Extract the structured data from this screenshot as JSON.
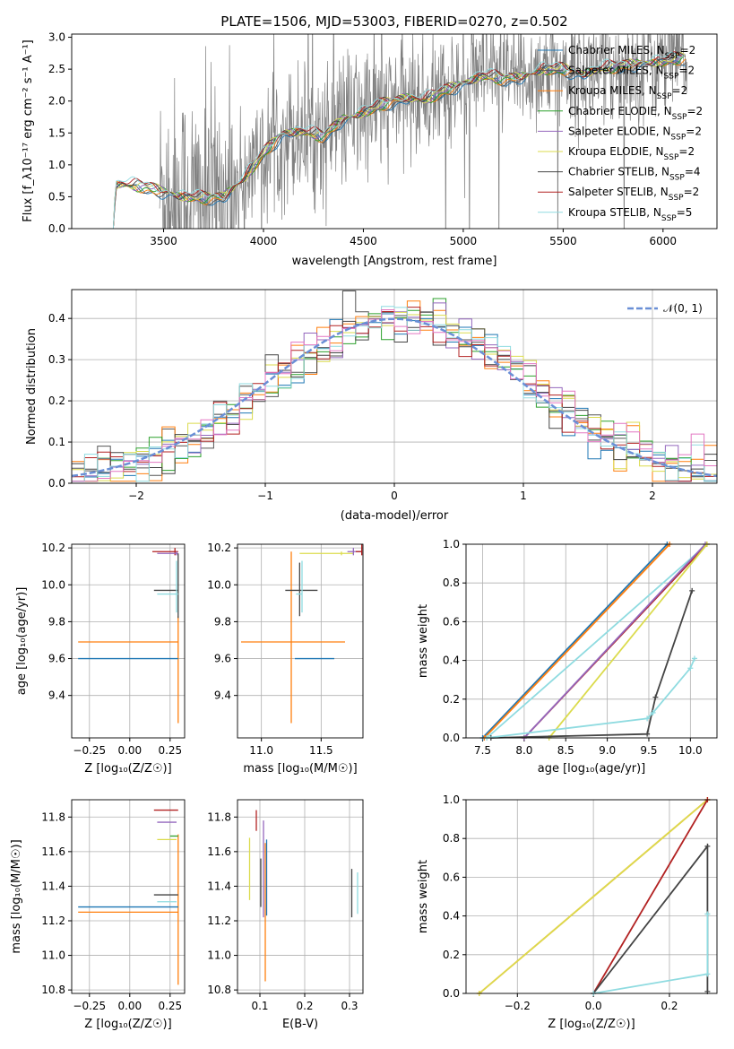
{
  "title": "PLATE=1506, MJD=53003, FIBERID=0270, z=0.502",
  "models": [
    {
      "name": "Chabrier MILES, N_SSP=2",
      "color": "#1f77b4"
    },
    {
      "name": "Salpeter MILES, N_SSP=2",
      "color": "#555555"
    },
    {
      "name": "Kroupa MILES, N_SSP=2",
      "color": "#ff7f0e"
    },
    {
      "name": "Chabrier ELODIE, N_SSP=2",
      "color": "#2ca02c"
    },
    {
      "name": "Salpeter ELODIE, N_SSP=2",
      "color": "#9467bd"
    },
    {
      "name": "Kroupa ELODIE, N_SSP=2",
      "color": "#dbdb4d"
    },
    {
      "name": "Chabrier STELIB, N_SSP=4",
      "color": "#444444"
    },
    {
      "name": "Salpeter STELIB, N_SSP=2",
      "color": "#b22222"
    },
    {
      "name": "Kroupa STELIB, N_SSP=5",
      "color": "#8fdbe0"
    }
  ],
  "chart_data": [
    {
      "type": "line",
      "panel": "spectrum",
      "xlabel": "wavelength [Angstrom, rest frame]",
      "ylabel": "Flux [f_λ10⁻¹⁷ erg cm⁻² s⁻¹ A⁻¹]",
      "xlim": [
        3040,
        6270
      ],
      "ylim": [
        0,
        3.05
      ],
      "xticks": [
        3500,
        4000,
        4500,
        5000,
        5500,
        6000
      ],
      "yticks": [
        0.0,
        0.5,
        1.0,
        1.5,
        2.0,
        2.5,
        3.0
      ],
      "model_x": [
        3200,
        3250,
        3260,
        3300,
        3400,
        3500,
        3600,
        3700,
        3800,
        3900,
        4000,
        4100,
        4200,
        4300,
        4400,
        4500,
        4600,
        4700,
        4800,
        4900,
        5000,
        5100,
        5200,
        5300,
        5400,
        5500,
        5600,
        5700,
        5800,
        5900,
        6000,
        6100
      ],
      "model_y": [
        0.0,
        0.0,
        0.68,
        0.7,
        0.66,
        0.58,
        0.5,
        0.48,
        0.5,
        0.78,
        1.18,
        1.5,
        1.52,
        1.45,
        1.72,
        1.82,
        1.95,
        2.05,
        2.02,
        2.15,
        2.28,
        2.4,
        2.35,
        2.38,
        2.5,
        2.5,
        2.42,
        2.52,
        2.55,
        2.6,
        2.62,
        2.68
      ],
      "data_color": "#808080"
    },
    {
      "type": "line",
      "panel": "residual-histogram",
      "xlabel": "(data-model)/error",
      "ylabel": "Normed distribution",
      "xlim": [
        -2.5,
        2.5
      ],
      "ylim": [
        0,
        0.47
      ],
      "xticks": [
        -2,
        -1,
        0,
        1,
        2
      ],
      "yticks": [
        0.0,
        0.1,
        0.2,
        0.3,
        0.4
      ],
      "legend": "𝒩(0, 1)",
      "reference_curve": "normal(0,1)",
      "bin_width": 0.1
    },
    {
      "type": "scatter",
      "panel": "age-vs-Z",
      "xlabel": "Z [log₁₀(Z/Z☉)]",
      "ylabel": "age  [log₁₀(age/yr)]",
      "xlim": [
        -0.36,
        0.34
      ],
      "ylim": [
        9.17,
        10.22
      ],
      "xticks": [
        -0.25,
        0.0,
        0.25
      ],
      "yticks": [
        9.4,
        9.6,
        9.8,
        10.0,
        10.2
      ],
      "points": [
        {
          "x": 0.3,
          "y": 9.69,
          "xerr": [
            0.62,
            0.0
          ],
          "yerr": [
            0.44,
            0.14
          ],
          "m": 2
        },
        {
          "x": 0.3,
          "y": 9.6,
          "xerr": [
            0.62,
            0.0
          ],
          "yerr": [
            0,
            0
          ],
          "m": 0
        },
        {
          "x": 0.28,
          "y": 10.18,
          "xerr": [
            0.14,
            0.02
          ],
          "yerr": [
            0.02,
            0.02
          ],
          "m": 7
        },
        {
          "x": 0.29,
          "y": 10.17,
          "xerr": [
            0.12,
            0.01
          ],
          "yerr": [
            0.01,
            0.01
          ],
          "m": 4
        },
        {
          "x": 0.3,
          "y": 9.97,
          "xerr": [
            0.15,
            0.0
          ],
          "yerr": [
            0.15,
            0.2
          ],
          "m": 6
        },
        {
          "x": 0.29,
          "y": 9.95,
          "xerr": [
            0.12,
            0.01
          ],
          "yerr": [
            0.1,
            0.18
          ],
          "m": 8
        }
      ]
    },
    {
      "type": "scatter",
      "panel": "age-vs-mass",
      "xlabel": "mass [log₁₀(M/M☉)]",
      "ylabel": "",
      "xlim": [
        10.8,
        11.85
      ],
      "ylim": [
        9.17,
        10.22
      ],
      "xticks": [
        11.0,
        11.5
      ],
      "yticks": [
        9.4,
        9.6,
        9.8,
        10.0,
        10.2
      ],
      "points": [
        {
          "x": 11.25,
          "y": 9.69,
          "xerr": [
            0.42,
            0.45
          ],
          "yerr": [
            0.44,
            0.49
          ],
          "m": 2
        },
        {
          "x": 11.28,
          "y": 9.6,
          "xerr": [
            0.0,
            0.33
          ],
          "yerr": [
            0.0,
            0.0
          ],
          "m": 0
        },
        {
          "x": 11.32,
          "y": 9.97,
          "xerr": [
            0.12,
            0.15
          ],
          "yerr": [
            0.14,
            0.15
          ],
          "m": 6
        },
        {
          "x": 11.34,
          "y": 9.95,
          "xerr": [
            0.05,
            0.0
          ],
          "yerr": [
            0.1,
            0.18
          ],
          "m": 8
        },
        {
          "x": 11.67,
          "y": 10.17,
          "xerr": [
            0.35,
            0.1
          ],
          "yerr": [
            0.01,
            0.01
          ],
          "m": 5
        },
        {
          "x": 11.77,
          "y": 10.18,
          "xerr": [
            0.05,
            0.07
          ],
          "yerr": [
            0.02,
            0.02
          ],
          "m": 4
        },
        {
          "x": 11.84,
          "y": 10.18,
          "xerr": [
            0.05,
            0.0
          ],
          "yerr": [
            0.02,
            0.05
          ],
          "m": 7
        }
      ]
    },
    {
      "type": "line",
      "panel": "cumulative-mass-weight-vs-age",
      "xlabel": "age  [log₁₀(age/yr)]",
      "ylabel": "mass weight",
      "xlim": [
        7.3,
        10.32
      ],
      "ylim": [
        0,
        1.0
      ],
      "xticks": [
        7.5,
        8.0,
        8.5,
        9.0,
        9.5,
        10.0
      ],
      "yticks": [
        0.0,
        0.2,
        0.4,
        0.6,
        0.8,
        1.0
      ],
      "series": [
        {
          "m": 0,
          "x": [
            7.5,
            9.72
          ],
          "y": [
            0.0,
            1.0
          ]
        },
        {
          "m": 2,
          "x": [
            7.52,
            9.75
          ],
          "y": [
            0.0,
            1.0
          ]
        },
        {
          "m": 8,
          "x": [
            7.55,
            10.2
          ],
          "y": [
            0.0,
            1.0
          ]
        },
        {
          "m": 7,
          "x": [
            8.0,
            10.2
          ],
          "y": [
            0.0,
            1.0
          ]
        },
        {
          "m": 4,
          "x": [
            8.0,
            10.18
          ],
          "y": [
            0.0,
            1.0
          ]
        },
        {
          "m": 5,
          "x": [
            8.3,
            10.2
          ],
          "y": [
            0.0,
            1.0
          ]
        },
        {
          "m": 6,
          "x": [
            7.6,
            9.48,
            9.58,
            10.02
          ],
          "y": [
            0.0,
            0.02,
            0.21,
            0.76
          ]
        },
        {
          "m": 8,
          "x": [
            7.55,
            9.48,
            9.55,
            10.0,
            10.05
          ],
          "y": [
            0.0,
            0.1,
            0.13,
            0.36,
            0.41
          ]
        }
      ]
    },
    {
      "type": "scatter",
      "panel": "mass-vs-Z",
      "xlabel": "Z [log₁₀(Z/Z☉)]",
      "ylabel": "mass [log₁₀(M/M☉)]",
      "xlim": [
        -0.36,
        0.34
      ],
      "ylim": [
        10.78,
        11.9
      ],
      "xticks": [
        -0.25,
        0.0,
        0.25
      ],
      "yticks": [
        10.8,
        11.0,
        11.2,
        11.4,
        11.6,
        11.8
      ],
      "points": [
        {
          "x": 0.3,
          "y": 11.25,
          "xerr": [
            0.62,
            0.0
          ],
          "yerr": [
            0.42,
            0.45
          ],
          "m": 2
        },
        {
          "x": 0.3,
          "y": 11.28,
          "xerr": [
            0.62,
            0.0
          ],
          "yerr": [
            0,
            0
          ],
          "m": 0
        },
        {
          "x": 0.3,
          "y": 11.35,
          "xerr": [
            0.15,
            0.0
          ],
          "yerr": [
            0.0,
            0.0
          ],
          "m": 6
        },
        {
          "x": 0.29,
          "y": 11.31,
          "xerr": [
            0.12,
            0.0
          ],
          "yerr": [
            0.0,
            0.0
          ],
          "m": 8
        },
        {
          "x": 0.3,
          "y": 11.84,
          "xerr": [
            0.15,
            0.0
          ],
          "yerr": [
            0.0,
            0.0
          ],
          "m": 7
        },
        {
          "x": 0.29,
          "y": 11.77,
          "xerr": [
            0.12,
            0.0
          ],
          "yerr": [
            0.0,
            0.0
          ],
          "m": 4
        },
        {
          "x": 0.29,
          "y": 11.67,
          "xerr": [
            0.12,
            0.0
          ],
          "yerr": [
            0.0,
            0.0
          ],
          "m": 5
        },
        {
          "x": 0.3,
          "y": 11.69,
          "xerr": [
            0.05,
            0.0
          ],
          "yerr": [
            0.0,
            0.0
          ],
          "m": 3
        }
      ]
    },
    {
      "type": "scatter",
      "panel": "mass-vs-EBV",
      "xlabel": "E(B-V)",
      "ylabel": "",
      "xlim": [
        0.05,
        0.33
      ],
      "ylim": [
        10.78,
        11.9
      ],
      "xticks": [
        0.1,
        0.2,
        0.3
      ],
      "yticks": [
        10.8,
        11.0,
        11.2,
        11.4,
        11.6,
        11.8
      ],
      "points": [
        {
          "x": 0.077,
          "y": 11.5,
          "xerr": [
            0,
            0
          ],
          "yerr": [
            0.18,
            0.18
          ],
          "m": 5
        },
        {
          "x": 0.092,
          "y": 11.78,
          "xerr": [
            0,
            0
          ],
          "yerr": [
            0.06,
            0.06
          ],
          "m": 7
        },
        {
          "x": 0.102,
          "y": 11.42,
          "xerr": [
            0,
            0
          ],
          "yerr": [
            0.14,
            0.14
          ],
          "m": 6
        },
        {
          "x": 0.108,
          "y": 11.5,
          "xerr": [
            0,
            0
          ],
          "yerr": [
            0.28,
            0.28
          ],
          "m": 4
        },
        {
          "x": 0.112,
          "y": 11.25,
          "xerr": [
            0,
            0
          ],
          "yerr": [
            0.4,
            0.4
          ],
          "m": 2
        },
        {
          "x": 0.115,
          "y": 11.45,
          "xerr": [
            0,
            0
          ],
          "yerr": [
            0.22,
            0.22
          ],
          "m": 0
        },
        {
          "x": 0.305,
          "y": 11.36,
          "xerr": [
            0,
            0
          ],
          "yerr": [
            0.14,
            0.14
          ],
          "m": 6
        },
        {
          "x": 0.318,
          "y": 11.36,
          "xerr": [
            0,
            0
          ],
          "yerr": [
            0.12,
            0.12
          ],
          "m": 8
        }
      ]
    },
    {
      "type": "line",
      "panel": "cumulative-mass-weight-vs-Z",
      "xlabel": "Z [log₁₀(Z/Z☉)]",
      "ylabel": "mass weight",
      "xlim": [
        -0.335,
        0.325
      ],
      "ylim": [
        0,
        1.0
      ],
      "xticks": [
        -0.2,
        0.0,
        0.2
      ],
      "yticks": [
        0.0,
        0.2,
        0.4,
        0.6,
        0.8,
        1.0
      ],
      "series": [
        {
          "m": 2,
          "x": [
            -0.3,
            0.3
          ],
          "y": [
            0.0,
            1.0
          ]
        },
        {
          "m": 5,
          "x": [
            -0.3,
            0.3
          ],
          "y": [
            0.0,
            1.0
          ]
        },
        {
          "m": 7,
          "x": [
            0.0,
            0.3
          ],
          "y": [
            0.0,
            1.0
          ]
        },
        {
          "m": 6,
          "x": [
            0.0,
            0.3,
            0.3
          ],
          "y": [
            0.0,
            0.76,
            0.01
          ]
        },
        {
          "m": 8,
          "x": [
            0.0,
            0.3,
            0.3
          ],
          "y": [
            0.0,
            0.1,
            0.41
          ]
        }
      ]
    }
  ]
}
